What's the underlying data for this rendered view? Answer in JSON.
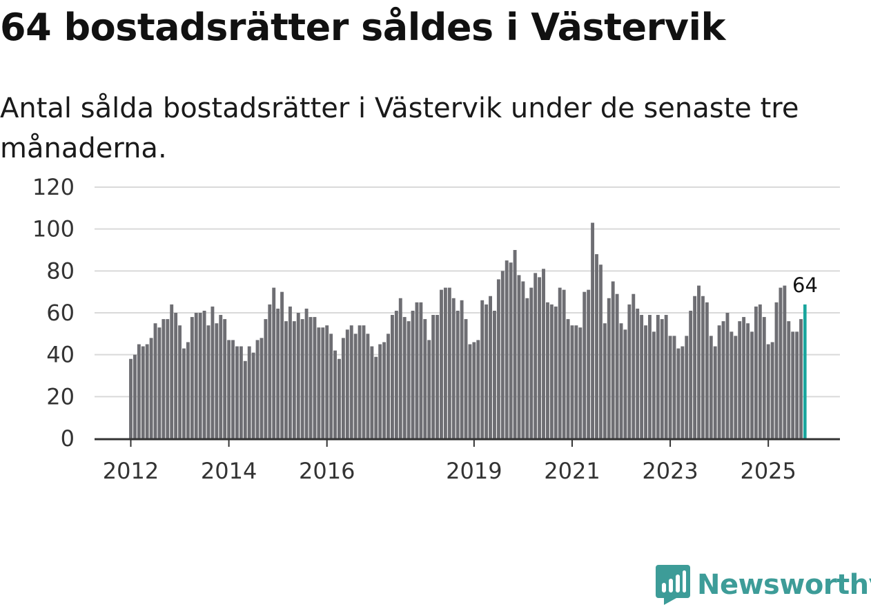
{
  "title": "64 bostadsrätter såldes i Västervik",
  "subtitle": "Antal sålda bostadsrätter i Västervik under de senaste tre månaderna.",
  "brand": {
    "name": "Newsworthy",
    "color": "#3d9c98"
  },
  "colors": {
    "bar": "#6e6e73",
    "highlight": "#19a59c",
    "grid": "#d9d9d9",
    "axis": "#333333"
  },
  "chart_data": {
    "type": "bar",
    "title": "64 bostadsrätter såldes i Västervik",
    "subtitle": "Antal sålda bostadsrätter i Västervik under de senaste tre månaderna.",
    "xlabel": "",
    "ylabel": "",
    "ylim": [
      0,
      120
    ],
    "yticks": [
      0,
      20,
      40,
      60,
      80,
      100,
      120
    ],
    "xticks": [
      {
        "label": "2012",
        "index": 0
      },
      {
        "label": "2014",
        "index": 24
      },
      {
        "label": "2016",
        "index": 48
      },
      {
        "label": "2019",
        "index": 84
      },
      {
        "label": "2021",
        "index": 108
      },
      {
        "label": "2023",
        "index": 132
      },
      {
        "label": "2025",
        "index": 156
      }
    ],
    "start": "2012-01",
    "values": [
      38,
      40,
      45,
      44,
      45,
      48,
      55,
      53,
      57,
      57,
      64,
      60,
      54,
      43,
      46,
      58,
      60,
      60,
      61,
      54,
      63,
      55,
      59,
      57,
      47,
      47,
      44,
      44,
      37,
      44,
      41,
      47,
      48,
      57,
      64,
      72,
      62,
      70,
      56,
      63,
      56,
      60,
      57,
      62,
      58,
      58,
      53,
      53,
      54,
      50,
      42,
      38,
      48,
      52,
      54,
      50,
      54,
      54,
      50,
      44,
      39,
      45,
      46,
      50,
      59,
      61,
      67,
      58,
      56,
      61,
      65,
      65,
      57,
      47,
      59,
      59,
      71,
      72,
      72,
      67,
      61,
      66,
      57,
      45,
      46,
      47,
      66,
      64,
      68,
      61,
      76,
      80,
      85,
      84,
      90,
      78,
      75,
      67,
      72,
      79,
      77,
      81,
      65,
      64,
      63,
      72,
      71,
      57,
      54,
      54,
      53,
      70,
      71,
      103,
      88,
      83,
      55,
      67,
      75,
      69,
      55,
      52,
      64,
      69,
      62,
      59,
      54,
      59,
      51,
      59,
      57,
      59,
      49,
      49,
      43,
      44,
      49,
      61,
      68,
      73,
      68,
      65,
      49,
      44,
      54,
      56,
      60,
      51,
      49,
      56,
      58,
      55,
      51,
      63,
      64,
      58,
      45,
      46,
      65,
      72,
      73,
      56,
      51,
      51,
      57,
      64
    ],
    "highlight_index": 165,
    "highlight_label": "64"
  }
}
